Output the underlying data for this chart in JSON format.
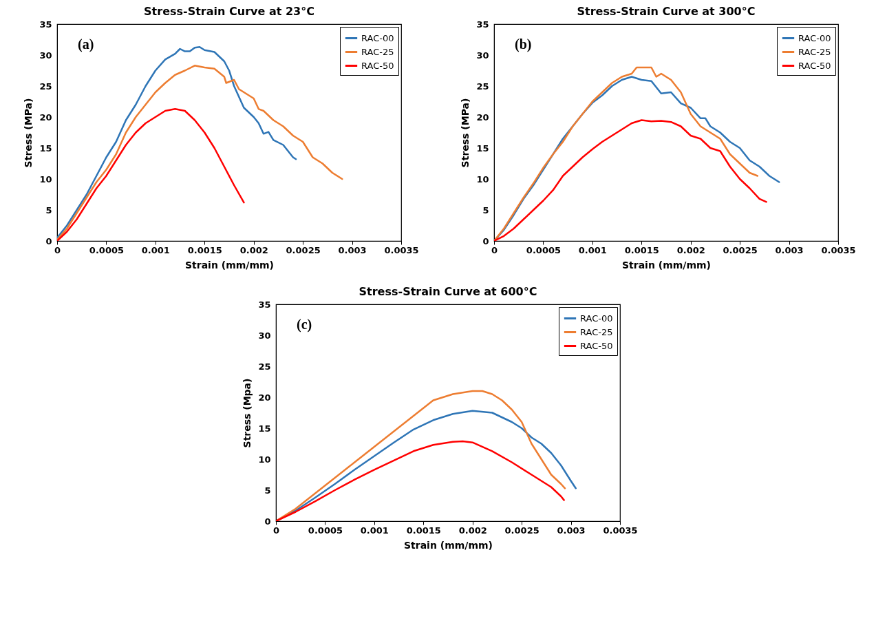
{
  "chart_data": [
    {
      "type": "line",
      "title": "Stress-Strain Curve at 23°C",
      "xlabel": "Strain (mm/mm)",
      "ylabel": "Stress (MPa)",
      "annotations": [
        "(a)"
      ],
      "legend": "top right",
      "xlim": [
        0,
        0.0035
      ],
      "xticks": [
        0,
        0.0005,
        0.001,
        0.0015,
        0.002,
        0.0025,
        0.003,
        0.0035
      ],
      "ylim": [
        0,
        35
      ],
      "yticks": [
        0,
        5,
        10,
        15,
        20,
        25,
        30,
        35
      ],
      "series": [
        {
          "name": "RAC-00",
          "color": "#2e75b6",
          "x": [
            0,
            0.0001,
            0.0002,
            0.0003,
            0.0004,
            0.0005,
            0.0006,
            0.0007,
            0.0008,
            0.0009,
            0.001,
            0.0011,
            0.0012,
            0.00125,
            0.0013,
            0.00135,
            0.0014,
            0.00145,
            0.0015,
            0.0016,
            0.0017,
            0.00175,
            0.0018,
            0.0019,
            0.002,
            0.00205,
            0.0021,
            0.00215,
            0.0022,
            0.0023,
            0.0024,
            0.00243
          ],
          "values": [
            0.5,
            2.5,
            5,
            7.5,
            10.5,
            13.5,
            16,
            19.5,
            22,
            25,
            27.5,
            29.3,
            30.2,
            31,
            30.6,
            30.6,
            31.2,
            31.3,
            30.8,
            30.5,
            29,
            27.5,
            25,
            21.5,
            20,
            19,
            17.3,
            17.6,
            16.3,
            15.5,
            13.5,
            13.2
          ]
        },
        {
          "name": "RAC-25",
          "color": "#ed7d31",
          "x": [
            0,
            0.0001,
            0.0002,
            0.0003,
            0.0004,
            0.0005,
            0.0006,
            0.0007,
            0.0008,
            0.0009,
            0.001,
            0.0011,
            0.0012,
            0.0013,
            0.0014,
            0.0015,
            0.0016,
            0.0017,
            0.00172,
            0.0018,
            0.00185,
            0.0019,
            0.002,
            0.00205,
            0.0021,
            0.0022,
            0.0023,
            0.0024,
            0.0025,
            0.0026,
            0.0027,
            0.0028,
            0.0029
          ],
          "values": [
            0.2,
            2,
            4.5,
            7,
            9.5,
            11.5,
            14,
            17.5,
            20,
            22,
            24,
            25.5,
            26.8,
            27.5,
            28.3,
            28,
            27.8,
            26.5,
            25.5,
            26,
            24.5,
            24,
            23,
            21.3,
            21,
            19.5,
            18.5,
            17,
            16,
            13.5,
            12.5,
            11,
            10
          ]
        },
        {
          "name": "RAC-50",
          "color": "#ff0000",
          "x": [
            0,
            0.0001,
            0.0002,
            0.0003,
            0.0004,
            0.0005,
            0.0006,
            0.0007,
            0.0008,
            0.0009,
            0.001,
            0.0011,
            0.0012,
            0.0013,
            0.0014,
            0.0015,
            0.0016,
            0.0017,
            0.0018,
            0.0019
          ],
          "values": [
            0,
            1.5,
            3.5,
            6,
            8.5,
            10.5,
            13,
            15.5,
            17.5,
            19,
            20,
            21,
            21.3,
            21,
            19.5,
            17.5,
            15,
            12,
            9,
            6.2
          ]
        }
      ]
    },
    {
      "type": "line",
      "title": "Stress-Strain Curve at 300°C",
      "xlabel": "Strain (mm/mm)",
      "ylabel": "Stress (MPa)",
      "annotations": [
        "(b)"
      ],
      "legend": "top right",
      "xlim": [
        0,
        0.0035
      ],
      "xticks": [
        0,
        0.0005,
        0.001,
        0.0015,
        0.002,
        0.0025,
        0.003,
        0.0035
      ],
      "ylim": [
        0,
        35
      ],
      "yticks": [
        0,
        5,
        10,
        15,
        20,
        25,
        30,
        35
      ],
      "series": [
        {
          "name": "RAC-00",
          "color": "#2e75b6",
          "x": [
            0,
            0.0001,
            0.0002,
            0.0003,
            0.0004,
            0.0005,
            0.0006,
            0.0007,
            0.0008,
            0.0009,
            0.001,
            0.0011,
            0.0012,
            0.0013,
            0.0014,
            0.0015,
            0.0016,
            0.0017,
            0.0018,
            0.0019,
            0.002,
            0.0021,
            0.00215,
            0.0022,
            0.0023,
            0.0024,
            0.0025,
            0.0026,
            0.0027,
            0.0028,
            0.0029
          ],
          "values": [
            0,
            1.8,
            4.2,
            6.8,
            9,
            11.5,
            14,
            16.5,
            18.5,
            20.5,
            22.3,
            23.5,
            25,
            26,
            26.5,
            26,
            25.8,
            23.8,
            24,
            22.2,
            21.5,
            19.8,
            19.8,
            18.5,
            17.5,
            16,
            15,
            13,
            12,
            10.5,
            9.5
          ]
        },
        {
          "name": "RAC-25",
          "color": "#ed7d31",
          "x": [
            0,
            0.0001,
            0.0002,
            0.0003,
            0.0004,
            0.0005,
            0.0006,
            0.0007,
            0.0008,
            0.0009,
            0.001,
            0.0011,
            0.0012,
            0.0013,
            0.0014,
            0.00145,
            0.0015,
            0.0016,
            0.00165,
            0.0017,
            0.0018,
            0.0019,
            0.002,
            0.0021,
            0.0022,
            0.0023,
            0.0024,
            0.0025,
            0.0026,
            0.00268
          ],
          "values": [
            0,
            2,
            4.5,
            7,
            9.3,
            11.8,
            14,
            16,
            18.5,
            20.5,
            22.5,
            24,
            25.5,
            26.5,
            27,
            28,
            28,
            28,
            26.5,
            27,
            26,
            24,
            20.5,
            18.5,
            17.5,
            16.5,
            14,
            12.5,
            11,
            10.5
          ]
        },
        {
          "name": "RAC-50",
          "color": "#ff0000",
          "x": [
            0,
            0.0001,
            0.0002,
            0.0003,
            0.0004,
            0.0005,
            0.0006,
            0.0007,
            0.0008,
            0.0009,
            0.001,
            0.0011,
            0.0012,
            0.0013,
            0.0014,
            0.0015,
            0.0016,
            0.0017,
            0.0018,
            0.0019,
            0.002,
            0.0021,
            0.0022,
            0.0023,
            0.0024,
            0.0025,
            0.0026,
            0.0027,
            0.00277
          ],
          "values": [
            0,
            0.8,
            2,
            3.5,
            5,
            6.5,
            8.2,
            10.5,
            12,
            13.5,
            14.8,
            16,
            17,
            18,
            19,
            19.5,
            19.3,
            19.4,
            19.2,
            18.5,
            17,
            16.5,
            15,
            14.5,
            12,
            10,
            8.5,
            6.8,
            6.3
          ]
        }
      ]
    },
    {
      "type": "line",
      "title": "Stress-Strain Curve at 600°C",
      "xlabel": "Strain (mm/mm)",
      "ylabel": "Stress (Mpa)",
      "annotations": [
        "(c)"
      ],
      "legend": "top right",
      "xlim": [
        0,
        0.0035
      ],
      "xticks": [
        0,
        0.0005,
        0.001,
        0.0015,
        0.002,
        0.0025,
        0.003,
        0.0035
      ],
      "ylim": [
        0,
        35
      ],
      "yticks": [
        0,
        5,
        10,
        15,
        20,
        25,
        30,
        35
      ],
      "series": [
        {
          "name": "RAC-00",
          "color": "#2e75b6",
          "x": [
            0,
            0.0002,
            0.0004,
            0.0006,
            0.0008,
            0.001,
            0.0012,
            0.0014,
            0.0016,
            0.0018,
            0.002,
            0.0022,
            0.0024,
            0.0025,
            0.0026,
            0.0027,
            0.0028,
            0.0029,
            0.003,
            0.00305
          ],
          "values": [
            0,
            1.7,
            3.8,
            6,
            8.3,
            10.5,
            12.7,
            14.8,
            16.3,
            17.3,
            17.8,
            17.5,
            16,
            15,
            13.5,
            12.5,
            11,
            9,
            6.5,
            5.3
          ]
        },
        {
          "name": "RAC-25",
          "color": "#ed7d31",
          "x": [
            0,
            0.0002,
            0.0004,
            0.0006,
            0.0008,
            0.001,
            0.0012,
            0.0014,
            0.0016,
            0.0018,
            0.002,
            0.0021,
            0.0022,
            0.0023,
            0.0024,
            0.0025,
            0.0026,
            0.0027,
            0.0028,
            0.0029,
            0.00294
          ],
          "values": [
            0,
            2,
            4.5,
            7,
            9.5,
            12,
            14.5,
            17,
            19.5,
            20.5,
            21,
            21,
            20.5,
            19.5,
            18,
            16,
            12.5,
            10,
            7.5,
            6,
            5.3
          ]
        },
        {
          "name": "RAC-50",
          "color": "#ff0000",
          "x": [
            0,
            0.0002,
            0.0004,
            0.0006,
            0.0008,
            0.001,
            0.0012,
            0.0014,
            0.0016,
            0.0018,
            0.0019,
            0.002,
            0.0022,
            0.0024,
            0.0026,
            0.0028,
            0.0029,
            0.00293
          ],
          "values": [
            0,
            1.5,
            3.2,
            5,
            6.7,
            8.3,
            9.8,
            11.3,
            12.3,
            12.8,
            12.9,
            12.7,
            11.3,
            9.5,
            7.5,
            5.5,
            4,
            3.4
          ]
        }
      ]
    }
  ]
}
